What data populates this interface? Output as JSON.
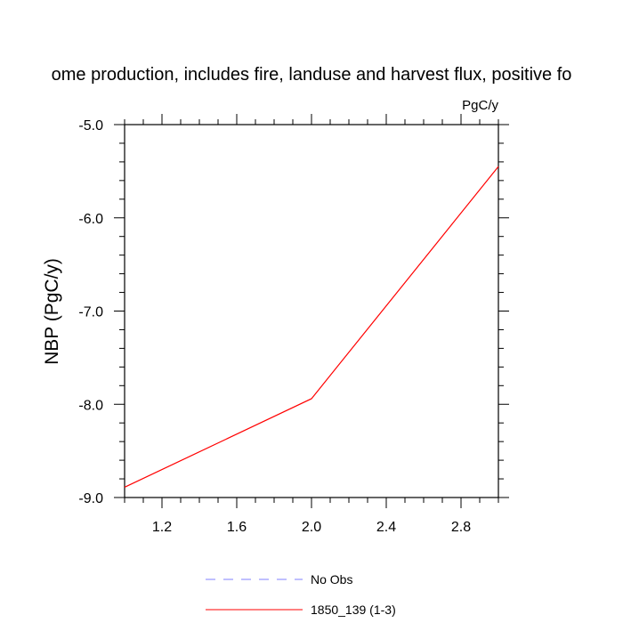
{
  "chart_data": {
    "type": "line",
    "title": "ome production, includes fire, landuse and harvest flux, positive fo",
    "units_label": "PgC/y",
    "ylabel": "NBP  (PgC/y)",
    "xlabel": "",
    "xlim": [
      1.0,
      3.0
    ],
    "ylim": [
      -9.0,
      -5.0
    ],
    "x_ticks": [
      1.2,
      1.6,
      2.0,
      2.4,
      2.8
    ],
    "y_ticks": [
      -9.0,
      -8.0,
      -7.0,
      -6.0,
      -5.0
    ],
    "x_tick_labels": [
      "1.2",
      "1.6",
      "2.0",
      "2.4",
      "2.8"
    ],
    "y_tick_labels": [
      "-9.0",
      "-8.0",
      "-7.0",
      "-6.0",
      "-5.0"
    ],
    "grid": false,
    "legend_position": "bottom-center",
    "series": [
      {
        "name": "No Obs",
        "color": "#8080ff",
        "style": "dashed",
        "x": [],
        "y": []
      },
      {
        "name": "1850_139 (1-3)",
        "color": "#ff0000",
        "style": "solid",
        "x": [
          1.0,
          2.0,
          3.0
        ],
        "y": [
          -8.89,
          -7.94,
          -5.45
        ]
      }
    ]
  }
}
